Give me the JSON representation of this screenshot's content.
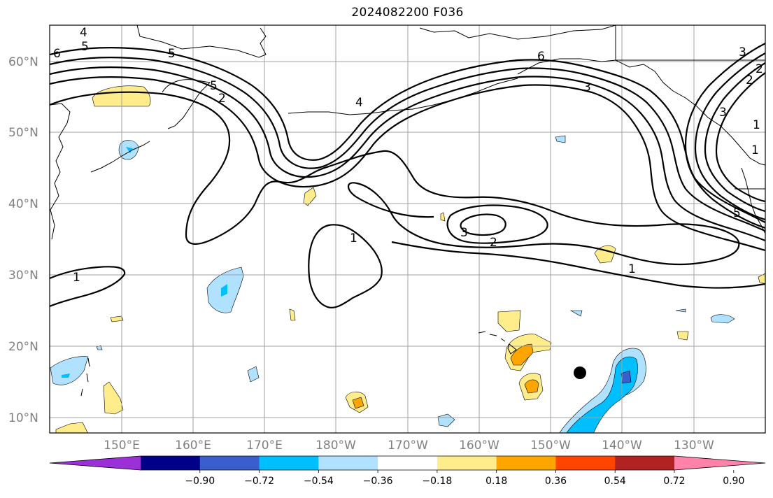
{
  "map": {
    "title": "2024082200 F036",
    "lat_labels": [
      "60°N",
      "50°N",
      "40°N",
      "30°N",
      "20°N",
      "10°N"
    ],
    "lon_labels": [
      "150°E",
      "160°E",
      "170°E",
      "180°W",
      "170°W",
      "160°W",
      "150°W",
      "140°W",
      "130°W"
    ],
    "contour_labels": [
      "4",
      "5",
      "6",
      "5",
      "5",
      "2",
      "4",
      "3",
      "3",
      "2",
      "1",
      "1",
      "3",
      "2",
      "1",
      "1",
      "5",
      "2",
      "3",
      "1",
      "6"
    ],
    "marker": "storm-center-dot"
  },
  "colorbar": {
    "tick_labels": [
      "−0.90",
      "−0.72",
      "−0.54",
      "−0.36",
      "−0.18",
      "0.18",
      "0.36",
      "0.54",
      "0.72",
      "0.90"
    ],
    "colors": [
      "#9b30d9",
      "#00008b",
      "#3a5fcd",
      "#00bfff",
      "#b0e2ff",
      "#ffffff",
      "#ffec8b",
      "#ffa500",
      "#ff4500",
      "#b22222",
      "#ff82ab"
    ]
  }
}
